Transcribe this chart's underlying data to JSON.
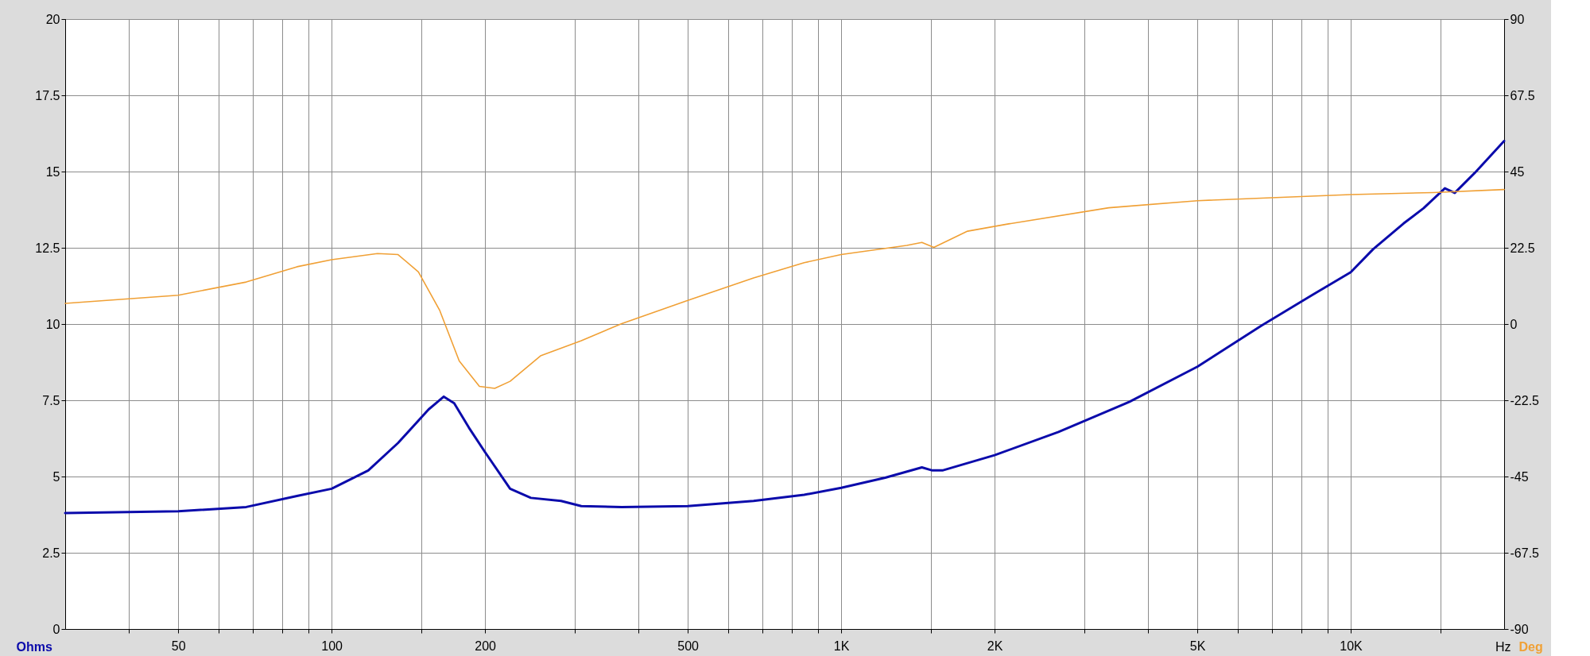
{
  "chart_data": {
    "type": "line",
    "xlabel": "Hz",
    "ylabel": "Ohms",
    "y2label": "Deg",
    "log": "x",
    "grid": true,
    "xlim": [
      30,
      20000
    ],
    "xticks": [
      {
        "value": 40,
        "label": null
      },
      50,
      {
        "value": 60,
        "label": null
      },
      {
        "value": 70,
        "label": null
      },
      {
        "value": 80,
        "label": null
      },
      {
        "value": 90,
        "label": null
      },
      100,
      {
        "value": 150,
        "label": null
      },
      200,
      {
        "value": 300,
        "label": null
      },
      {
        "value": 400,
        "label": null
      },
      500,
      {
        "value": 600,
        "label": null
      },
      {
        "value": 700,
        "label": null
      },
      {
        "value": 800,
        "label": null
      },
      {
        "value": 900,
        "label": null
      },
      {
        "value": 1000,
        "label": "1K"
      },
      {
        "value": 1500,
        "label": null
      },
      {
        "value": 2000,
        "label": "2K"
      },
      {
        "value": 3000,
        "label": null
      },
      {
        "value": 4000,
        "label": null
      },
      {
        "value": 5000,
        "label": "5K"
      },
      {
        "value": 6000,
        "label": null
      },
      {
        "value": 7000,
        "label": null
      },
      {
        "value": 8000,
        "label": null
      },
      {
        "value": 9000,
        "label": null
      },
      {
        "value": 10000,
        "label": "10K"
      },
      {
        "value": 15000,
        "label": null
      }
    ],
    "ylim": [
      0,
      20
    ],
    "yticks": [
      0,
      2.5,
      5,
      7.5,
      10,
      12.5,
      15,
      17.5,
      20
    ],
    "y2lim": [
      -90,
      90
    ],
    "y2ticks": [
      -90,
      -67.5,
      -45,
      -22.5,
      0,
      22.5,
      45,
      67.5,
      90
    ],
    "series": [
      {
        "color": "#0b0bab",
        "x": [
          30,
          50,
          68,
          85.5,
          100,
          118,
          135,
          155,
          166,
          174,
          186,
          200,
          224,
          246,
          282,
          309,
          371,
          500,
          673,
          846,
          1000,
          1220,
          1440,
          1510,
          1580,
          2000,
          2670,
          3680,
          5000,
          6680,
          8400,
          10000,
          11060,
          12700,
          13900,
          15300,
          16000,
          17500,
          20000
        ],
        "values": [
          3.8,
          3.86,
          4.0,
          4.36,
          4.6,
          5.2,
          6.1,
          7.2,
          7.62,
          7.4,
          6.6,
          5.8,
          4.6,
          4.3,
          4.2,
          4.03,
          4.0,
          4.03,
          4.2,
          4.4,
          4.63,
          4.96,
          5.3,
          5.2,
          5.2,
          5.7,
          6.46,
          7.45,
          8.6,
          9.95,
          10.95,
          11.7,
          12.45,
          13.3,
          13.8,
          14.45,
          14.3,
          14.95,
          16.0
        ]
      },
      {
        "color": "#f0a035",
        "axis": "y2",
        "x": [
          30,
          50,
          68,
          85.5,
          100,
          123,
          135,
          148,
          163,
          178,
          195,
          209,
          224,
          257,
          309,
          371,
          500,
          673,
          846,
          1000,
          1345,
          1440,
          1520,
          1770,
          2120,
          3350,
          5000,
          10000,
          14500,
          20000
        ],
        "values": [
          6.1,
          8.5,
          12.4,
          16.9,
          19,
          20.8,
          20.5,
          15.4,
          4,
          -10.9,
          -18.4,
          -19,
          -16.9,
          -9.4,
          -4.9,
          0.1,
          7,
          13.6,
          18.1,
          20.5,
          23.2,
          24.1,
          22.6,
          27.4,
          29.5,
          34.3,
          36.4,
          38.2,
          38.8,
          39.7
        ]
      }
    ]
  }
}
